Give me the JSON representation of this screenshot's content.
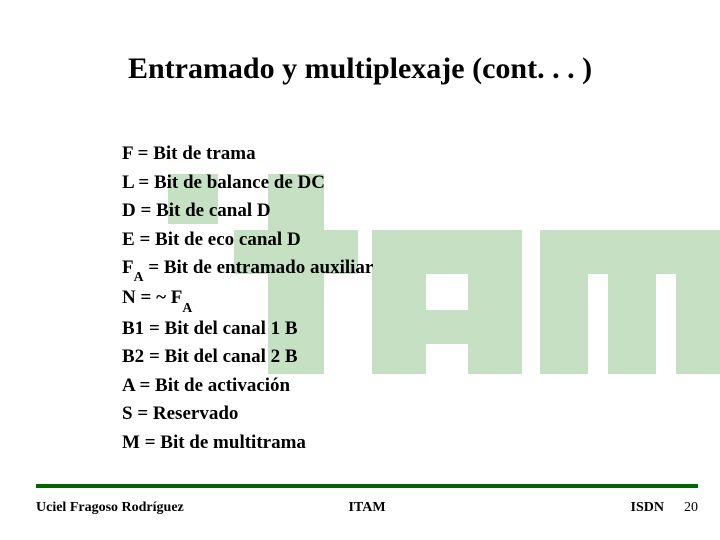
{
  "colors": {
    "background": "#ffffff",
    "text": "#000000",
    "rule": "#006600",
    "watermark": "#c5e0c3"
  },
  "title": "Entramado y multiplexaje (cont. . . )",
  "definitions": [
    {
      "sym": "F",
      "sub": "",
      "rhs": "Bit de trama"
    },
    {
      "sym": "L",
      "sub": "",
      "rhs": "Bit de balance de DC"
    },
    {
      "sym": "D",
      "sub": "",
      "rhs": "Bit de canal D"
    },
    {
      "sym": "E",
      "sub": "",
      "rhs": "Bit de eco canal D"
    },
    {
      "sym": "F",
      "sub": "A",
      "rhs": "Bit de entramado auxiliar"
    },
    {
      "sym": "N",
      "sub": "",
      "rhs": "~ F",
      "rhs_sub": "A"
    },
    {
      "sym": "B1",
      "sub": "",
      "rhs": "Bit del canal 1 B"
    },
    {
      "sym": "B2",
      "sub": "",
      "rhs": "Bit del canal 2 B"
    },
    {
      "sym": "A",
      "sub": "",
      "rhs": "Bit de activación"
    },
    {
      "sym": "S",
      "sub": "",
      "rhs": "Reservado"
    },
    {
      "sym": "M",
      "sub": "",
      "rhs": "Bit de multitrama"
    }
  ],
  "footer": {
    "author": "Uciel Fragoso Rodríguez",
    "org": "ITAM",
    "topic": "ISDN",
    "page": "20"
  }
}
